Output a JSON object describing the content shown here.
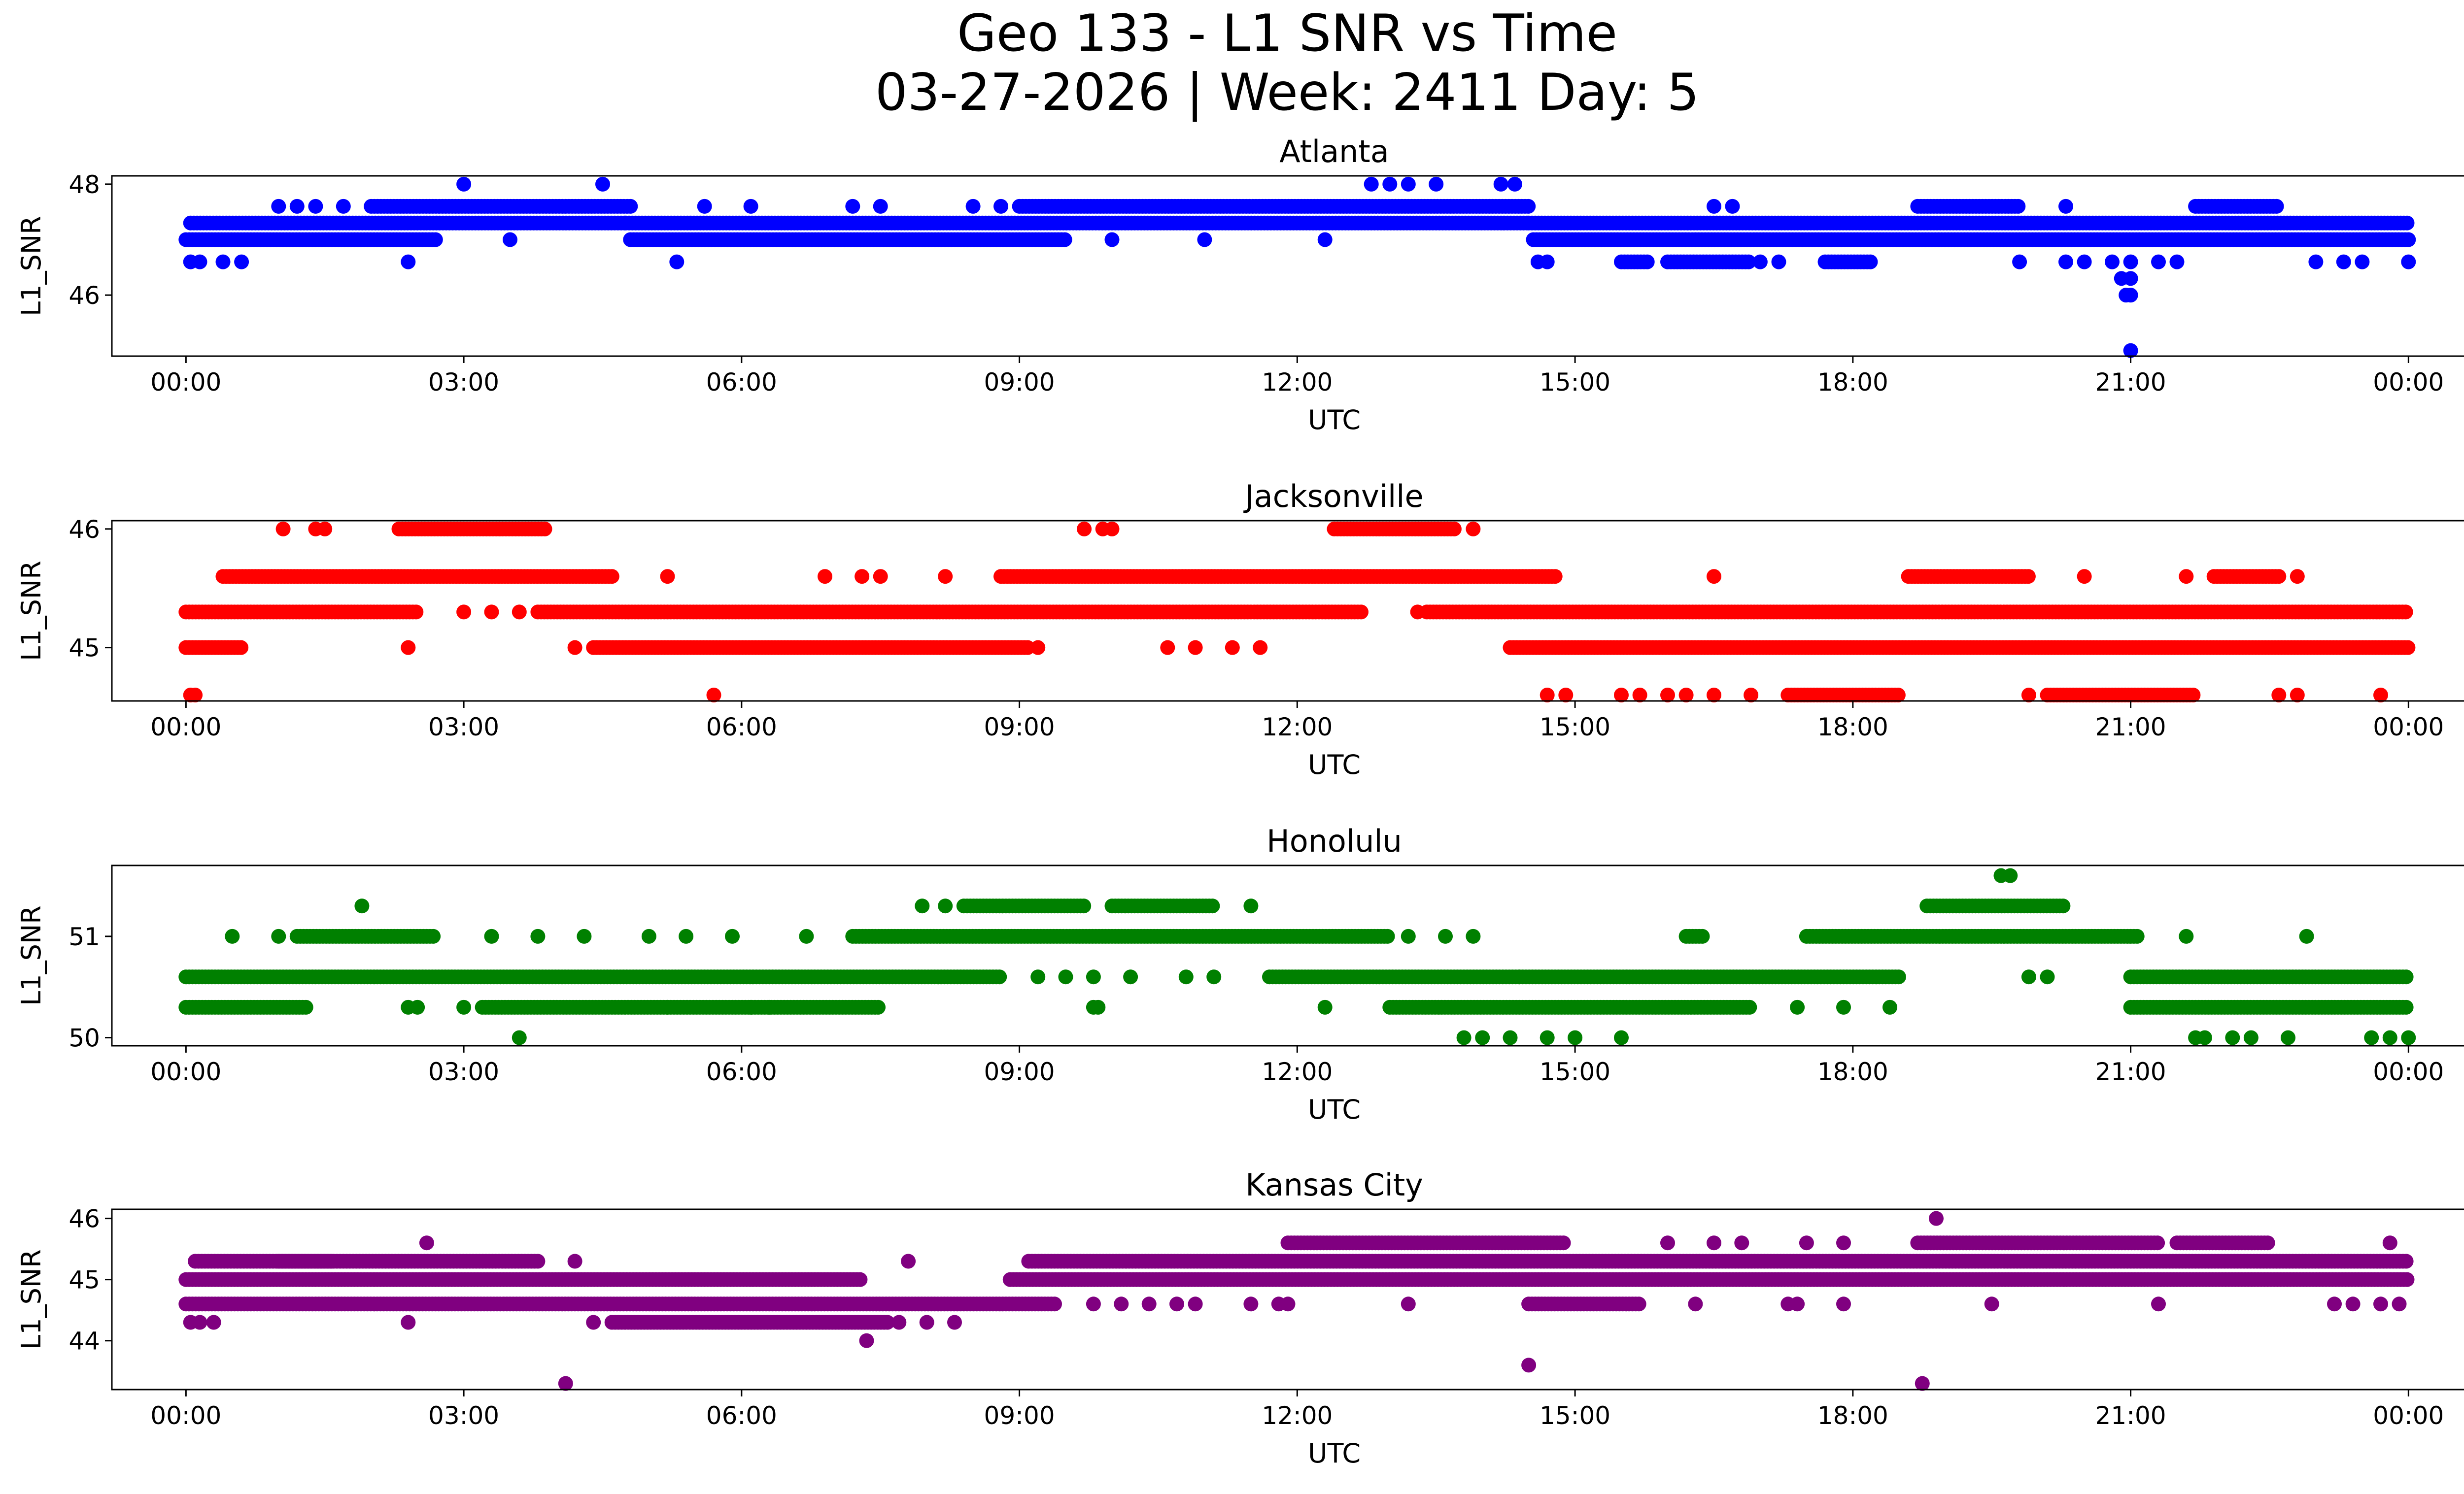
{
  "figure": {
    "title_line1": "Geo 133 - L1 SNR vs Time",
    "title_line2": "03-27-2026 | Week: 2411 Day: 5"
  },
  "chart_data": [
    {
      "type": "scatter",
      "title": "Atlanta",
      "xlabel": "UTC",
      "ylabel": "L1_SNR",
      "color": "#0000ff",
      "xlim": [
        -0.8,
        25.6
      ],
      "ylim": [
        44.9,
        48.15
      ],
      "xticks": [
        0,
        3,
        6,
        9,
        12,
        15,
        18,
        21,
        24
      ],
      "xtick_labels": [
        "00:00",
        "03:00",
        "06:00",
        "09:00",
        "12:00",
        "15:00",
        "18:00",
        "21:00",
        "00:00"
      ],
      "yticks": [
        46,
        48
      ],
      "ytick_labels": [
        "46",
        "48"
      ],
      "bands": [
        {
          "y": 47.3,
          "ranges": [
            [
              0.05,
              2.6
            ],
            [
              2.6,
              4.75
            ],
            [
              4.75,
              14.5
            ],
            [
              14.5,
              24.0
            ]
          ]
        },
        {
          "y": 47.0,
          "ranges": [
            [
              0.0,
              2.7
            ],
            [
              4.8,
              9.5
            ],
            [
              14.55,
              24.0
            ]
          ]
        },
        {
          "y": 47.6,
          "ranges": [
            [
              2.0,
              4.8
            ],
            [
              9.0,
              14.5
            ],
            [
              18.7,
              19.8
            ],
            [
              21.7,
              22.6
            ]
          ]
        },
        {
          "y": 46.6,
          "ranges": [
            [
              15.5,
              15.8
            ],
            [
              16.0,
              16.9
            ],
            [
              17.7,
              18.2
            ]
          ]
        }
      ],
      "points": [
        [
          0.05,
          46.6
        ],
        [
          0.15,
          46.6
        ],
        [
          0.4,
          46.6
        ],
        [
          0.6,
          46.6
        ],
        [
          2.4,
          46.6
        ],
        [
          14.6,
          46.6
        ],
        [
          14.7,
          46.6
        ],
        [
          5.3,
          46.6
        ],
        [
          17.0,
          46.6
        ],
        [
          17.2,
          46.6
        ],
        [
          19.8,
          46.6
        ],
        [
          20.3,
          46.6
        ],
        [
          20.5,
          46.6
        ],
        [
          20.8,
          46.6
        ],
        [
          21.0,
          46.6
        ],
        [
          21.3,
          46.6
        ],
        [
          21.5,
          46.6
        ],
        [
          23.0,
          46.6
        ],
        [
          23.3,
          46.6
        ],
        [
          23.5,
          46.6
        ],
        [
          24.0,
          46.6
        ],
        [
          3.5,
          47.0
        ],
        [
          12.3,
          47.0
        ],
        [
          10.0,
          47.0
        ],
        [
          11.0,
          47.0
        ],
        [
          1.0,
          47.6
        ],
        [
          1.2,
          47.6
        ],
        [
          1.4,
          47.6
        ],
        [
          1.7,
          47.6
        ],
        [
          5.6,
          47.6
        ],
        [
          6.1,
          47.6
        ],
        [
          7.2,
          47.6
        ],
        [
          7.5,
          47.6
        ],
        [
          8.5,
          47.6
        ],
        [
          8.8,
          47.6
        ],
        [
          16.5,
          47.6
        ],
        [
          16.7,
          47.6
        ],
        [
          20.3,
          47.6
        ],
        [
          3.0,
          48.0
        ],
        [
          4.5,
          48.0
        ],
        [
          12.8,
          48.0
        ],
        [
          13.0,
          48.0
        ],
        [
          13.2,
          48.0
        ],
        [
          13.5,
          48.0
        ],
        [
          14.2,
          48.0
        ],
        [
          14.35,
          48.0
        ],
        [
          21.0,
          46.3
        ],
        [
          20.9,
          46.3
        ],
        [
          21.0,
          46.0
        ],
        [
          20.95,
          46.0
        ],
        [
          21.0,
          45.0
        ]
      ]
    },
    {
      "type": "scatter",
      "title": "Jacksonville",
      "xlabel": "UTC",
      "ylabel": "L1_SNR",
      "color": "#ff0000",
      "xlim": [
        -0.8,
        25.6
      ],
      "ylim": [
        44.55,
        46.07
      ],
      "xticks": [
        0,
        3,
        6,
        9,
        12,
        15,
        18,
        21,
        24
      ],
      "xtick_labels": [
        "00:00",
        "03:00",
        "06:00",
        "09:00",
        "12:00",
        "15:00",
        "18:00",
        "21:00",
        "00:00"
      ],
      "yticks": [
        45,
        46
      ],
      "ytick_labels": [
        "45",
        "46"
      ],
      "bands": [
        {
          "y": 45.3,
          "ranges": [
            [
              0.0,
              2.5
            ],
            [
              3.8,
              12.7
            ],
            [
              13.4,
              24.0
            ]
          ]
        },
        {
          "y": 45.0,
          "ranges": [
            [
              0.0,
              0.6
            ],
            [
              4.4,
              9.1
            ],
            [
              14.3,
              24.0
            ]
          ]
        },
        {
          "y": 45.6,
          "ranges": [
            [
              0.4,
              4.6
            ],
            [
              8.8,
              14.8
            ],
            [
              18.6,
              19.9
            ],
            [
              21.9,
              22.6
            ]
          ]
        },
        {
          "y": 46.0,
          "ranges": [
            [
              2.3,
              3.9
            ],
            [
              12.4,
              13.7
            ]
          ]
        },
        {
          "y": 44.6,
          "ranges": [
            [
              17.3,
              18.5
            ],
            [
              20.1,
              21.7
            ]
          ]
        }
      ],
      "points": [
        [
          0.05,
          44.6
        ],
        [
          0.1,
          44.6
        ],
        [
          5.7,
          44.6
        ],
        [
          14.7,
          44.6
        ],
        [
          14.9,
          44.6
        ],
        [
          15.5,
          44.6
        ],
        [
          15.7,
          44.6
        ],
        [
          16.0,
          44.6
        ],
        [
          16.2,
          44.6
        ],
        [
          16.5,
          44.6
        ],
        [
          16.9,
          44.6
        ],
        [
          19.9,
          44.6
        ],
        [
          22.6,
          44.6
        ],
        [
          22.8,
          44.6
        ],
        [
          23.7,
          44.6
        ],
        [
          2.4,
          45.0
        ],
        [
          4.2,
          45.0
        ],
        [
          10.6,
          45.0
        ],
        [
          10.9,
          45.0
        ],
        [
          11.3,
          45.0
        ],
        [
          11.6,
          45.0
        ],
        [
          9.2,
          45.0
        ],
        [
          3.0,
          45.3
        ],
        [
          3.3,
          45.3
        ],
        [
          3.6,
          45.3
        ],
        [
          13.3,
          45.3
        ],
        [
          5.2,
          45.6
        ],
        [
          6.9,
          45.6
        ],
        [
          7.3,
          45.6
        ],
        [
          7.5,
          45.6
        ],
        [
          8.2,
          45.6
        ],
        [
          16.5,
          45.6
        ],
        [
          20.5,
          45.6
        ],
        [
          21.6,
          45.6
        ],
        [
          22.8,
          45.6
        ],
        [
          1.05,
          46.0
        ],
        [
          1.4,
          46.0
        ],
        [
          1.5,
          46.0
        ],
        [
          9.7,
          46.0
        ],
        [
          9.9,
          46.0
        ],
        [
          10.0,
          46.0
        ],
        [
          13.9,
          46.0
        ]
      ]
    },
    {
      "type": "scatter",
      "title": "Honolulu",
      "xlabel": "UTC",
      "ylabel": "L1_SNR",
      "color": "#008000",
      "xlim": [
        -0.8,
        25.6
      ],
      "ylim": [
        49.92,
        51.7
      ],
      "xticks": [
        0,
        3,
        6,
        9,
        12,
        15,
        18,
        21,
        24
      ],
      "xtick_labels": [
        "00:00",
        "03:00",
        "06:00",
        "09:00",
        "12:00",
        "15:00",
        "18:00",
        "21:00",
        "00:00"
      ],
      "yticks": [
        50,
        51
      ],
      "ytick_labels": [
        "50",
        "51"
      ],
      "bands": [
        {
          "y": 50.6,
          "ranges": [
            [
              0.0,
              8.8
            ],
            [
              11.7,
              14.4
            ],
            [
              14.4,
              18.5
            ],
            [
              21.0,
              24.0
            ]
          ]
        },
        {
          "y": 50.3,
          "ranges": [
            [
              0.0,
              1.3
            ],
            [
              3.2,
              5.2
            ],
            [
              5.2,
              7.5
            ],
            [
              13.0,
              16.9
            ],
            [
              21.0,
              24.0
            ]
          ]
        },
        {
          "y": 51.0,
          "ranges": [
            [
              1.2,
              2.7
            ],
            [
              7.2,
              13.0
            ],
            [
              16.2,
              16.4
            ],
            [
              17.5,
              21.1
            ]
          ]
        },
        {
          "y": 51.3,
          "ranges": [
            [
              8.4,
              9.7
            ],
            [
              10.0,
              11.1
            ],
            [
              18.8,
              20.3
            ]
          ]
        }
      ],
      "points": [
        [
          0.5,
          51.0
        ],
        [
          1.0,
          51.0
        ],
        [
          3.3,
          51.0
        ],
        [
          3.8,
          51.0
        ],
        [
          4.3,
          51.0
        ],
        [
          5.0,
          51.0
        ],
        [
          5.4,
          51.0
        ],
        [
          5.9,
          51.0
        ],
        [
          6.7,
          51.0
        ],
        [
          13.2,
          51.0
        ],
        [
          13.6,
          51.0
        ],
        [
          13.9,
          51.0
        ],
        [
          21.6,
          51.0
        ],
        [
          22.9,
          51.0
        ],
        [
          1.9,
          51.3
        ],
        [
          7.95,
          51.3
        ],
        [
          8.2,
          51.3
        ],
        [
          11.5,
          51.3
        ],
        [
          19.6,
          51.6
        ],
        [
          19.7,
          51.6
        ],
        [
          9.2,
          50.6
        ],
        [
          9.5,
          50.6
        ],
        [
          9.8,
          50.6
        ],
        [
          10.2,
          50.6
        ],
        [
          10.8,
          50.6
        ],
        [
          11.1,
          50.6
        ],
        [
          19.9,
          50.6
        ],
        [
          20.1,
          50.6
        ],
        [
          2.4,
          50.3
        ],
        [
          2.5,
          50.3
        ],
        [
          3.0,
          50.3
        ],
        [
          6.1,
          50.3
        ],
        [
          6.3,
          50.3
        ],
        [
          9.8,
          50.3
        ],
        [
          9.85,
          50.3
        ],
        [
          12.3,
          50.3
        ],
        [
          17.4,
          50.3
        ],
        [
          17.9,
          50.3
        ],
        [
          18.4,
          50.3
        ],
        [
          3.6,
          50.0
        ],
        [
          13.8,
          50.0
        ],
        [
          14.0,
          50.0
        ],
        [
          14.3,
          50.0
        ],
        [
          14.7,
          50.0
        ],
        [
          15.0,
          50.0
        ],
        [
          15.5,
          50.0
        ],
        [
          21.7,
          50.0
        ],
        [
          21.8,
          50.0
        ],
        [
          22.1,
          50.0
        ],
        [
          22.3,
          50.0
        ],
        [
          22.7,
          50.0
        ],
        [
          23.6,
          50.0
        ],
        [
          23.8,
          50.0
        ],
        [
          24.0,
          50.0
        ]
      ]
    },
    {
      "type": "scatter",
      "title": "Kansas City",
      "xlabel": "UTC",
      "ylabel": "L1_SNR",
      "color": "#800080",
      "xlim": [
        -0.8,
        25.6
      ],
      "ylim": [
        43.2,
        46.15
      ],
      "xticks": [
        0,
        3,
        6,
        9,
        12,
        15,
        18,
        21,
        24
      ],
      "xtick_labels": [
        "00:00",
        "03:00",
        "06:00",
        "09:00",
        "12:00",
        "15:00",
        "18:00",
        "21:00",
        "00:00"
      ],
      "yticks": [
        44,
        45,
        46
      ],
      "ytick_labels": [
        "44",
        "45",
        "46"
      ],
      "bands": [
        {
          "y": 45.0,
          "ranges": [
            [
              0.0,
              7.3
            ],
            [
              8.9,
              24.0
            ]
          ]
        },
        {
          "y": 44.6,
          "ranges": [
            [
              0.0,
              9.4
            ],
            [
              14.5,
              15.7
            ]
          ]
        },
        {
          "y": 45.3,
          "ranges": [
            [
              0.1,
              1.6
            ],
            [
              1.0,
              3.8
            ],
            [
              9.1,
              24.0
            ]
          ]
        },
        {
          "y": 44.3,
          "ranges": [
            [
              4.6,
              7.6
            ]
          ]
        },
        {
          "y": 45.6,
          "ranges": [
            [
              11.9,
              14.9
            ],
            [
              18.7,
              21.3
            ],
            [
              21.5,
              22.5
            ]
          ]
        }
      ],
      "points": [
        [
          0.05,
          44.3
        ],
        [
          0.15,
          44.3
        ],
        [
          0.3,
          44.3
        ],
        [
          2.4,
          44.3
        ],
        [
          4.4,
          44.3
        ],
        [
          7.7,
          44.3
        ],
        [
          8.0,
          44.3
        ],
        [
          8.3,
          44.3
        ],
        [
          2.6,
          45.6
        ],
        [
          16.0,
          45.6
        ],
        [
          16.5,
          45.6
        ],
        [
          16.8,
          45.6
        ],
        [
          17.5,
          45.6
        ],
        [
          17.9,
          45.6
        ],
        [
          23.8,
          45.6
        ],
        [
          4.2,
          45.3
        ],
        [
          7.8,
          45.3
        ],
        [
          9.8,
          44.6
        ],
        [
          10.1,
          44.6
        ],
        [
          10.4,
          44.6
        ],
        [
          10.7,
          44.6
        ],
        [
          10.9,
          44.6
        ],
        [
          11.5,
          44.6
        ],
        [
          11.8,
          44.6
        ],
        [
          11.9,
          44.6
        ],
        [
          13.2,
          44.6
        ],
        [
          16.3,
          44.6
        ],
        [
          17.3,
          44.6
        ],
        [
          17.4,
          44.6
        ],
        [
          17.9,
          44.6
        ],
        [
          19.5,
          44.6
        ],
        [
          21.3,
          44.6
        ],
        [
          23.2,
          44.6
        ],
        [
          23.4,
          44.6
        ],
        [
          23.7,
          44.6
        ],
        [
          23.9,
          44.6
        ],
        [
          7.35,
          44.0
        ],
        [
          4.1,
          43.3
        ],
        [
          18.75,
          43.3
        ],
        [
          14.5,
          43.6
        ],
        [
          18.9,
          46.0
        ]
      ]
    }
  ]
}
